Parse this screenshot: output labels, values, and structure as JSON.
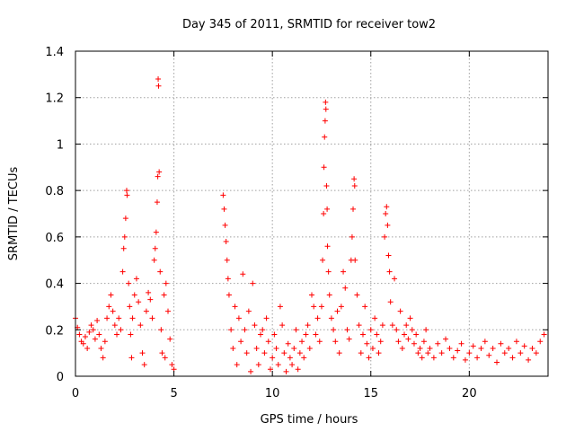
{
  "chart_data": {
    "type": "scatter",
    "title": "Day 345 of 2011, SRMTID for receiver tow2",
    "xlabel": "GPS time / hours",
    "ylabel": "SRMTID / TECUs",
    "xlim": [
      0,
      24
    ],
    "ylim": [
      0,
      1.4
    ],
    "xticks": [
      0,
      5,
      10,
      15,
      20
    ],
    "xtick_labels": [
      "0",
      "5",
      "10",
      "15",
      "20"
    ],
    "yticks": [
      0,
      0.2,
      0.4,
      0.6,
      0.8,
      1,
      1.2,
      1.4
    ],
    "ytick_labels": [
      "0",
      "0.2",
      "0.4",
      "0.6",
      "0.8",
      "1",
      "1.2",
      "1.4"
    ],
    "grid": true,
    "marker": "+",
    "color": "#ff0000",
    "series": [
      {
        "name": "SRMTID",
        "points": [
          [
            0.0,
            0.25
          ],
          [
            0.1,
            0.21
          ],
          [
            0.2,
            0.18
          ],
          [
            0.3,
            0.15
          ],
          [
            0.4,
            0.14
          ],
          [
            0.5,
            0.17
          ],
          [
            0.6,
            0.12
          ],
          [
            0.7,
            0.19
          ],
          [
            0.8,
            0.22
          ],
          [
            0.9,
            0.2
          ],
          [
            1.0,
            0.16
          ],
          [
            1.1,
            0.24
          ],
          [
            1.2,
            0.18
          ],
          [
            1.3,
            0.12
          ],
          [
            1.4,
            0.08
          ],
          [
            1.5,
            0.15
          ],
          [
            1.6,
            0.25
          ],
          [
            1.7,
            0.3
          ],
          [
            1.8,
            0.35
          ],
          [
            1.9,
            0.28
          ],
          [
            2.0,
            0.22
          ],
          [
            2.1,
            0.18
          ],
          [
            2.2,
            0.25
          ],
          [
            2.3,
            0.2
          ],
          [
            2.4,
            0.45
          ],
          [
            2.45,
            0.55
          ],
          [
            2.5,
            0.6
          ],
          [
            2.55,
            0.68
          ],
          [
            2.6,
            0.8
          ],
          [
            2.62,
            0.78
          ],
          [
            2.7,
            0.4
          ],
          [
            2.75,
            0.3
          ],
          [
            2.8,
            0.18
          ],
          [
            2.85,
            0.08
          ],
          [
            2.9,
            0.25
          ],
          [
            3.0,
            0.35
          ],
          [
            3.1,
            0.42
          ],
          [
            3.2,
            0.32
          ],
          [
            3.3,
            0.22
          ],
          [
            3.4,
            0.1
          ],
          [
            3.5,
            0.05
          ],
          [
            3.6,
            0.28
          ],
          [
            3.7,
            0.36
          ],
          [
            3.8,
            0.33
          ],
          [
            3.9,
            0.25
          ],
          [
            4.0,
            0.5
          ],
          [
            4.05,
            0.55
          ],
          [
            4.1,
            0.62
          ],
          [
            4.15,
            0.75
          ],
          [
            4.18,
            0.86
          ],
          [
            4.2,
            1.28
          ],
          [
            4.22,
            1.25
          ],
          [
            4.25,
            0.88
          ],
          [
            4.3,
            0.45
          ],
          [
            4.35,
            0.2
          ],
          [
            4.4,
            0.1
          ],
          [
            4.5,
            0.35
          ],
          [
            4.55,
            0.08
          ],
          [
            4.6,
            0.4
          ],
          [
            4.7,
            0.28
          ],
          [
            4.8,
            0.16
          ],
          [
            4.9,
            0.05
          ],
          [
            5.0,
            0.03
          ],
          [
            7.5,
            0.78
          ],
          [
            7.55,
            0.72
          ],
          [
            7.6,
            0.65
          ],
          [
            7.65,
            0.58
          ],
          [
            7.7,
            0.5
          ],
          [
            7.75,
            0.42
          ],
          [
            7.8,
            0.35
          ],
          [
            7.9,
            0.2
          ],
          [
            8.0,
            0.12
          ],
          [
            8.1,
            0.3
          ],
          [
            8.2,
            0.05
          ],
          [
            8.3,
            0.25
          ],
          [
            8.4,
            0.15
          ],
          [
            8.5,
            0.44
          ],
          [
            8.6,
            0.2
          ],
          [
            8.7,
            0.1
          ],
          [
            8.8,
            0.28
          ],
          [
            8.9,
            0.02
          ],
          [
            9.0,
            0.4
          ],
          [
            9.1,
            0.22
          ],
          [
            9.2,
            0.12
          ],
          [
            9.3,
            0.05
          ],
          [
            9.4,
            0.18
          ],
          [
            9.5,
            0.2
          ],
          [
            9.6,
            0.1
          ],
          [
            9.7,
            0.25
          ],
          [
            9.8,
            0.15
          ],
          [
            9.9,
            0.03
          ],
          [
            10.0,
            0.08
          ],
          [
            10.1,
            0.18
          ],
          [
            10.2,
            0.12
          ],
          [
            10.3,
            0.05
          ],
          [
            10.4,
            0.3
          ],
          [
            10.5,
            0.22
          ],
          [
            10.6,
            0.1
          ],
          [
            10.7,
            0.02
          ],
          [
            10.8,
            0.14
          ],
          [
            10.9,
            0.08
          ],
          [
            11.0,
            0.05
          ],
          [
            11.1,
            0.12
          ],
          [
            11.2,
            0.2
          ],
          [
            11.3,
            0.03
          ],
          [
            11.4,
            0.1
          ],
          [
            11.5,
            0.15
          ],
          [
            11.6,
            0.08
          ],
          [
            11.7,
            0.18
          ],
          [
            11.8,
            0.22
          ],
          [
            11.9,
            0.12
          ],
          [
            12.0,
            0.35
          ],
          [
            12.1,
            0.3
          ],
          [
            12.2,
            0.18
          ],
          [
            12.3,
            0.25
          ],
          [
            12.4,
            0.15
          ],
          [
            12.5,
            0.3
          ],
          [
            12.55,
            0.5
          ],
          [
            12.6,
            0.7
          ],
          [
            12.62,
            0.9
          ],
          [
            12.65,
            1.03
          ],
          [
            12.68,
            1.1
          ],
          [
            12.7,
            1.18
          ],
          [
            12.72,
            1.15
          ],
          [
            12.75,
            0.82
          ],
          [
            12.78,
            0.72
          ],
          [
            12.8,
            0.56
          ],
          [
            12.85,
            0.45
          ],
          [
            12.9,
            0.35
          ],
          [
            13.0,
            0.25
          ],
          [
            13.1,
            0.2
          ],
          [
            13.2,
            0.15
          ],
          [
            13.3,
            0.28
          ],
          [
            13.4,
            0.1
          ],
          [
            13.5,
            0.3
          ],
          [
            13.6,
            0.45
          ],
          [
            13.7,
            0.38
          ],
          [
            13.8,
            0.2
          ],
          [
            13.9,
            0.16
          ],
          [
            14.0,
            0.5
          ],
          [
            14.05,
            0.6
          ],
          [
            14.1,
            0.72
          ],
          [
            14.15,
            0.85
          ],
          [
            14.18,
            0.82
          ],
          [
            14.2,
            0.5
          ],
          [
            14.3,
            0.35
          ],
          [
            14.4,
            0.22
          ],
          [
            14.5,
            0.1
          ],
          [
            14.6,
            0.18
          ],
          [
            14.7,
            0.3
          ],
          [
            14.8,
            0.14
          ],
          [
            14.9,
            0.08
          ],
          [
            15.0,
            0.2
          ],
          [
            15.1,
            0.12
          ],
          [
            15.2,
            0.25
          ],
          [
            15.3,
            0.18
          ],
          [
            15.4,
            0.1
          ],
          [
            15.5,
            0.15
          ],
          [
            15.6,
            0.22
          ],
          [
            15.7,
            0.6
          ],
          [
            15.75,
            0.7
          ],
          [
            15.8,
            0.73
          ],
          [
            15.85,
            0.65
          ],
          [
            15.9,
            0.52
          ],
          [
            15.95,
            0.45
          ],
          [
            16.0,
            0.32
          ],
          [
            16.1,
            0.22
          ],
          [
            16.2,
            0.42
          ],
          [
            16.3,
            0.2
          ],
          [
            16.4,
            0.15
          ],
          [
            16.5,
            0.28
          ],
          [
            16.6,
            0.12
          ],
          [
            16.7,
            0.18
          ],
          [
            16.8,
            0.22
          ],
          [
            16.9,
            0.16
          ],
          [
            17.0,
            0.25
          ],
          [
            17.1,
            0.2
          ],
          [
            17.2,
            0.14
          ],
          [
            17.3,
            0.18
          ],
          [
            17.4,
            0.1
          ],
          [
            17.5,
            0.12
          ],
          [
            17.6,
            0.08
          ],
          [
            17.7,
            0.15
          ],
          [
            17.8,
            0.2
          ],
          [
            17.9,
            0.1
          ],
          [
            18.0,
            0.12
          ],
          [
            18.2,
            0.08
          ],
          [
            18.4,
            0.14
          ],
          [
            18.6,
            0.1
          ],
          [
            18.8,
            0.16
          ],
          [
            19.0,
            0.12
          ],
          [
            19.2,
            0.08
          ],
          [
            19.4,
            0.11
          ],
          [
            19.6,
            0.14
          ],
          [
            19.8,
            0.07
          ],
          [
            20.0,
            0.1
          ],
          [
            20.2,
            0.13
          ],
          [
            20.4,
            0.08
          ],
          [
            20.6,
            0.12
          ],
          [
            20.8,
            0.15
          ],
          [
            21.0,
            0.09
          ],
          [
            21.2,
            0.12
          ],
          [
            21.4,
            0.06
          ],
          [
            21.6,
            0.14
          ],
          [
            21.8,
            0.1
          ],
          [
            22.0,
            0.12
          ],
          [
            22.2,
            0.08
          ],
          [
            22.4,
            0.15
          ],
          [
            22.6,
            0.1
          ],
          [
            22.8,
            0.13
          ],
          [
            23.0,
            0.07
          ],
          [
            23.2,
            0.12
          ],
          [
            23.4,
            0.1
          ],
          [
            23.6,
            0.15
          ],
          [
            23.8,
            0.18
          ]
        ]
      }
    ]
  }
}
